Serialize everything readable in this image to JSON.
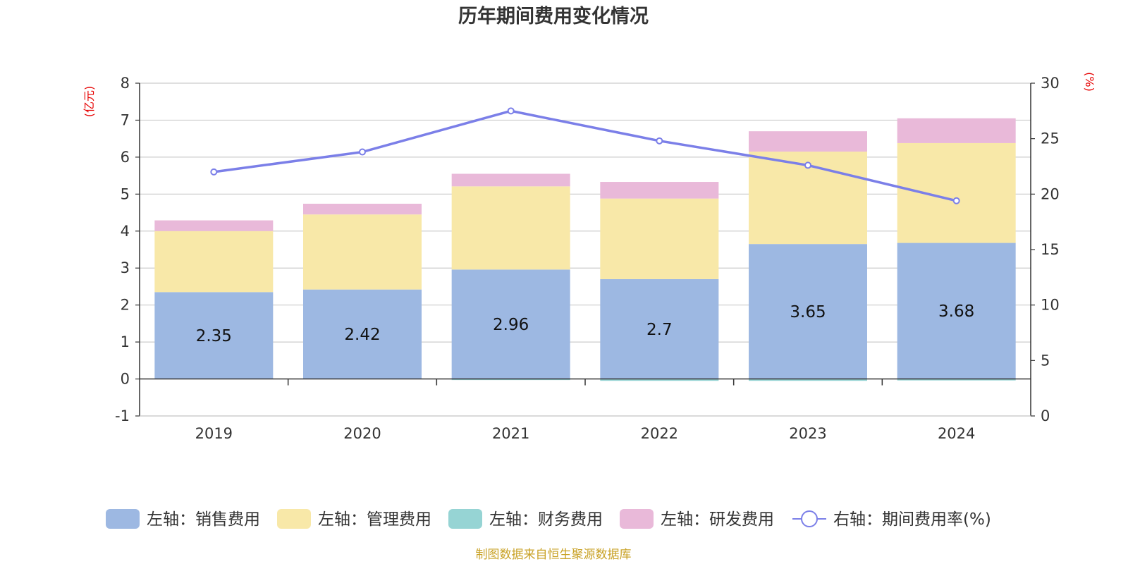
{
  "chart_data": {
    "type": "bar",
    "title": "历年期间费用变化情况",
    "categories": [
      "2019",
      "2020",
      "2021",
      "2022",
      "2023",
      "2024"
    ],
    "left_axis": {
      "unit": "(亿元)",
      "ticks": [
        8,
        7,
        6,
        5,
        4,
        3,
        2,
        1,
        0,
        -1
      ],
      "ylim": [
        -1,
        8
      ]
    },
    "right_axis": {
      "unit": "(%)",
      "ticks": [
        30,
        25,
        20,
        15,
        10,
        5,
        0
      ],
      "ylim": [
        0,
        30
      ]
    },
    "series": [
      {
        "name": "左轴：销售费用",
        "kind": "bar",
        "color": "#9db8e2",
        "values": [
          2.35,
          2.42,
          2.96,
          2.7,
          3.65,
          3.68
        ],
        "labels": [
          "2.35",
          "2.42",
          "2.96",
          "2.7",
          "3.65",
          "3.68"
        ]
      },
      {
        "name": "左轴：管理费用",
        "kind": "bar",
        "color": "#f8e8a8",
        "values": [
          1.65,
          2.03,
          2.25,
          2.18,
          2.5,
          2.7
        ]
      },
      {
        "name": "左轴：财务费用",
        "kind": "bar",
        "color": "#96d4d4",
        "values": [
          0.0,
          0.0,
          -0.03,
          -0.05,
          -0.05,
          -0.04
        ]
      },
      {
        "name": "左轴：研发费用",
        "kind": "bar",
        "color": "#e9b9d9",
        "values": [
          0.29,
          0.29,
          0.34,
          0.45,
          0.55,
          0.67
        ]
      },
      {
        "name": "右轴：期间费用率(%)",
        "kind": "line",
        "color": "#7b7fe8",
        "values": [
          22.0,
          23.8,
          27.5,
          24.8,
          22.6,
          19.4
        ]
      }
    ],
    "grid": true,
    "legend": "bottom"
  },
  "source": "制图数据来自恒生聚源数据库"
}
